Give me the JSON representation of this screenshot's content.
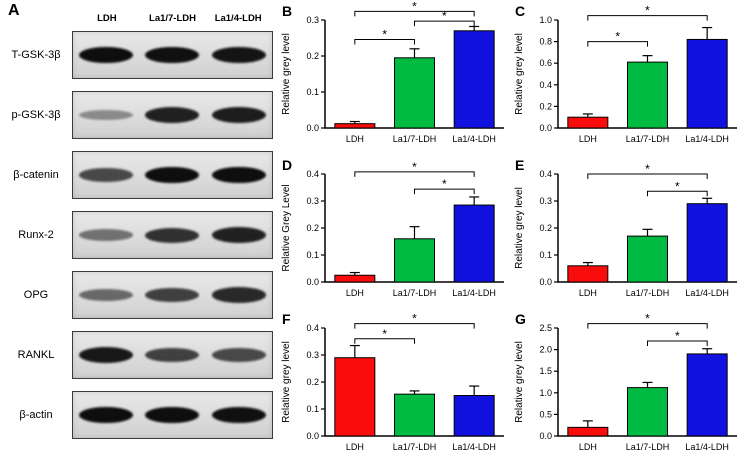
{
  "figure": {
    "panel_a": {
      "letter": "A",
      "lane_labels": [
        "LDH",
        "La1/7-LDH",
        "La1/4-LDH"
      ],
      "rows": [
        {
          "label": "T-GSK-3β",
          "bands": [
            0.97,
            0.96,
            0.93
          ]
        },
        {
          "label": "p-GSK-3β",
          "bands": [
            0.18,
            0.85,
            0.88
          ]
        },
        {
          "label": "β-catenin",
          "bands": [
            0.6,
            0.97,
            0.98
          ]
        },
        {
          "label": "Runx-2",
          "bands": [
            0.35,
            0.75,
            0.85
          ]
        },
        {
          "label": "OPG",
          "bands": [
            0.4,
            0.65,
            0.8
          ]
        },
        {
          "label": "RANKL",
          "bands": [
            0.9,
            0.65,
            0.6
          ]
        },
        {
          "label": "β-actin",
          "bands": [
            0.97,
            0.97,
            0.96
          ]
        }
      ]
    }
  },
  "chart_data": [
    {
      "type": "bar",
      "panel": "B",
      "ylabel": "Relative grey level",
      "ylim": [
        0,
        0.3
      ],
      "yticks": [
        "0.0",
        "0.1",
        "0.2",
        "0.3"
      ],
      "categories": [
        "LDH",
        "La1/7-LDH",
        "La1/4-LDH"
      ],
      "values": [
        0.012,
        0.195,
        0.27
      ],
      "errors": [
        0.006,
        0.025,
        0.012
      ],
      "colors": [
        "#f80c0c",
        "#00bb41",
        "#1212e0"
      ],
      "brackets": [
        {
          "from": 0,
          "to": 1,
          "h": 0.82,
          "label": "*"
        },
        {
          "from": 1,
          "to": 2,
          "h": 0.99,
          "label": "*"
        },
        {
          "from": 0,
          "to": 2,
          "h": 1.08,
          "label": "*"
        }
      ]
    },
    {
      "type": "bar",
      "panel": "C",
      "ylabel": "Relative grey level",
      "ylim": [
        0,
        1.0
      ],
      "yticks": [
        "0.0",
        "0.2",
        "0.4",
        "0.6",
        "0.8",
        "1.0"
      ],
      "categories": [
        "LDH",
        "La1/7-LDH",
        "La1/4-LDH"
      ],
      "values": [
        0.1,
        0.61,
        0.82
      ],
      "errors": [
        0.03,
        0.06,
        0.11
      ],
      "colors": [
        "#f80c0c",
        "#00bb41",
        "#1212e0"
      ],
      "brackets": [
        {
          "from": 0,
          "to": 1,
          "h": 0.8,
          "label": "*"
        },
        {
          "from": 0,
          "to": 2,
          "h": 1.04,
          "label": "*"
        }
      ]
    },
    {
      "type": "bar",
      "panel": "D",
      "ylabel": "Relative Grey Level",
      "ylim": [
        0,
        0.4
      ],
      "yticks": [
        "0.0",
        "0.1",
        "0.2",
        "0.3",
        "0.4"
      ],
      "categories": [
        "LDH",
        "La1/7-LDH",
        "La1/4-LDH"
      ],
      "values": [
        0.025,
        0.16,
        0.285
      ],
      "errors": [
        0.01,
        0.045,
        0.03
      ],
      "colors": [
        "#f80c0c",
        "#00bb41",
        "#1212e0"
      ],
      "brackets": [
        {
          "from": 1,
          "to": 2,
          "h": 0.86,
          "label": "*"
        },
        {
          "from": 0,
          "to": 2,
          "h": 1.02,
          "label": "*"
        }
      ]
    },
    {
      "type": "bar",
      "panel": "E",
      "ylabel": "Relative grey level",
      "ylim": [
        0,
        0.4
      ],
      "yticks": [
        "0.0",
        "0.1",
        "0.2",
        "0.3",
        "0.4"
      ],
      "categories": [
        "LDH",
        "La1/7-LDH",
        "La1/4-LDH"
      ],
      "values": [
        0.06,
        0.17,
        0.29
      ],
      "errors": [
        0.012,
        0.025,
        0.02
      ],
      "colors": [
        "#f80c0c",
        "#00bb41",
        "#1212e0"
      ],
      "brackets": [
        {
          "from": 1,
          "to": 2,
          "h": 0.84,
          "label": "*"
        },
        {
          "from": 0,
          "to": 2,
          "h": 1.0,
          "label": "*"
        }
      ]
    },
    {
      "type": "bar",
      "panel": "F",
      "ylabel": "Relative grey level",
      "ylim": [
        0,
        0.4
      ],
      "yticks": [
        "0.0",
        "0.1",
        "0.2",
        "0.3",
        "0.4"
      ],
      "categories": [
        "LDH",
        "La1/7-LDH",
        "La1/4-LDH"
      ],
      "values": [
        0.29,
        0.155,
        0.15
      ],
      "errors": [
        0.045,
        0.012,
        0.035
      ],
      "colors": [
        "#f80c0c",
        "#00bb41",
        "#1212e0"
      ],
      "brackets": [
        {
          "from": 0,
          "to": 1,
          "h": 0.9,
          "label": "*"
        },
        {
          "from": 0,
          "to": 2,
          "h": 1.04,
          "label": "*"
        }
      ]
    },
    {
      "type": "bar",
      "panel": "G",
      "ylabel": "Relative grey level",
      "ylim": [
        0,
        2.5
      ],
      "yticks": [
        "0.0",
        "0.5",
        "1.0",
        "1.5",
        "2.0",
        "2.5"
      ],
      "categories": [
        "LDH",
        "La1/7-LDH",
        "La1/4-LDH"
      ],
      "values": [
        0.2,
        1.12,
        1.9
      ],
      "errors": [
        0.15,
        0.12,
        0.12
      ],
      "colors": [
        "#f80c0c",
        "#00bb41",
        "#1212e0"
      ],
      "brackets": [
        {
          "from": 1,
          "to": 2,
          "h": 0.88,
          "label": "*"
        },
        {
          "from": 0,
          "to": 2,
          "h": 1.04,
          "label": "*"
        }
      ]
    }
  ]
}
